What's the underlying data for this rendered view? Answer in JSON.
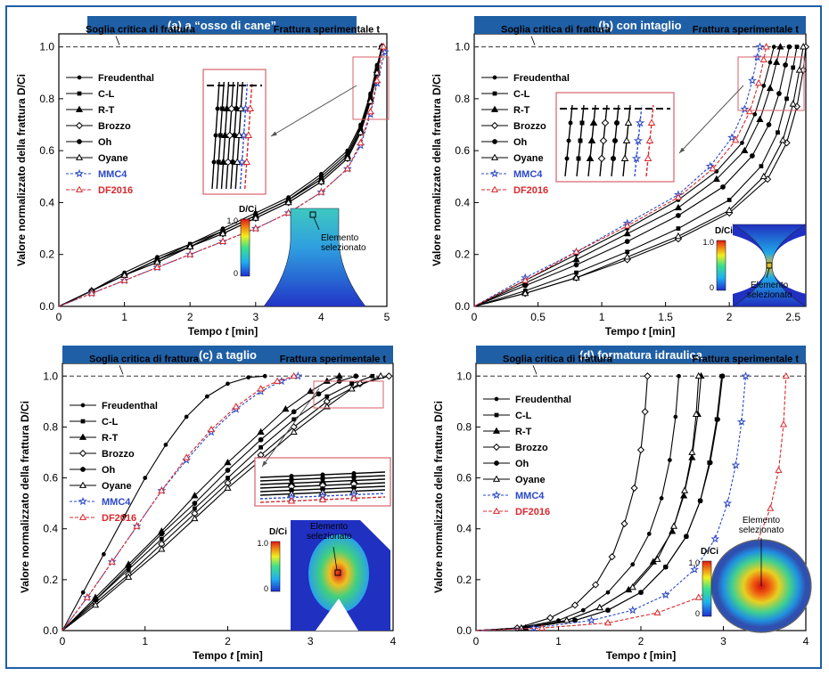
{
  "chart_data": [
    {
      "type": "line",
      "title": "(a) a “osso di cane”",
      "xlabel": "Tempo t [min]",
      "ylabel": "Valore normalizzato della frattura D/Ci",
      "xlim": [
        0,
        5
      ],
      "ylim": [
        0,
        1.05
      ],
      "xticks": [
        "0",
        "1",
        "2",
        "3",
        "4",
        "5"
      ],
      "yticks": [
        "0.0",
        "0.2",
        "0.4",
        "0.6",
        "0.8",
        "1.0"
      ],
      "annotations": [
        "Soglia critica di frattura",
        "Frattura sperimentale t"
      ],
      "contour": {
        "legend_title": "D/Ci",
        "max": "1.0",
        "min": "0",
        "label": "Elemento selezionato"
      },
      "series": [
        {
          "name": "Freudenthal",
          "x": [
            0,
            0.5,
            1,
            1.5,
            2,
            2.5,
            3,
            3.5,
            4,
            4.4,
            4.6,
            4.75,
            4.85,
            4.93
          ],
          "y": [
            0,
            0.06,
            0.13,
            0.19,
            0.24,
            0.3,
            0.36,
            0.42,
            0.51,
            0.6,
            0.7,
            0.82,
            0.93,
            1.0
          ]
        },
        {
          "name": "C-L",
          "x": [
            0,
            0.5,
            1,
            1.5,
            2,
            2.5,
            3,
            3.5,
            4,
            4.4,
            4.6,
            4.75,
            4.85,
            4.92
          ],
          "y": [
            0,
            0.06,
            0.12,
            0.18,
            0.24,
            0.29,
            0.35,
            0.41,
            0.5,
            0.59,
            0.69,
            0.81,
            0.92,
            1.0
          ]
        },
        {
          "name": "R-T",
          "x": [
            0,
            0.5,
            1,
            1.5,
            2,
            2.5,
            3,
            3.5,
            4,
            4.4,
            4.6,
            4.75,
            4.85,
            4.92
          ],
          "y": [
            0,
            0.06,
            0.12,
            0.18,
            0.23,
            0.29,
            0.35,
            0.41,
            0.49,
            0.58,
            0.68,
            0.8,
            0.91,
            1.0
          ]
        },
        {
          "name": "Brozzo",
          "x": [
            0,
            0.5,
            1,
            1.5,
            2,
            2.5,
            3,
            3.5,
            4,
            4.4,
            4.6,
            4.75,
            4.85,
            4.93
          ],
          "y": [
            0,
            0.06,
            0.12,
            0.17,
            0.23,
            0.28,
            0.34,
            0.4,
            0.48,
            0.57,
            0.67,
            0.79,
            0.9,
            1.0
          ]
        },
        {
          "name": "Oh",
          "x": [
            0,
            0.5,
            1,
            1.5,
            2,
            2.5,
            3,
            3.5,
            4,
            4.4,
            4.6,
            4.75,
            4.85,
            4.92
          ],
          "y": [
            0,
            0.06,
            0.12,
            0.18,
            0.23,
            0.29,
            0.35,
            0.41,
            0.49,
            0.58,
            0.68,
            0.8,
            0.91,
            1.0
          ]
        },
        {
          "name": "Oyane",
          "x": [
            0,
            0.5,
            1,
            1.5,
            2,
            2.5,
            3,
            3.5,
            4,
            4.4,
            4.6,
            4.75,
            4.85,
            4.92
          ],
          "y": [
            0,
            0.06,
            0.12,
            0.17,
            0.23,
            0.28,
            0.34,
            0.4,
            0.48,
            0.57,
            0.67,
            0.79,
            0.9,
            1.0
          ]
        },
        {
          "name": "MMC4",
          "x": [
            0,
            0.5,
            1,
            1.5,
            2,
            2.5,
            3,
            3.5,
            4,
            4.4,
            4.6,
            4.75,
            4.85,
            4.97
          ],
          "y": [
            0,
            0.05,
            0.1,
            0.15,
            0.2,
            0.25,
            0.3,
            0.36,
            0.44,
            0.53,
            0.62,
            0.74,
            0.86,
            0.98
          ]
        },
        {
          "name": "DF2016",
          "x": [
            0,
            0.5,
            1,
            1.5,
            2,
            2.5,
            3,
            3.5,
            4,
            4.4,
            4.6,
            4.75,
            4.85,
            4.95
          ],
          "y": [
            0,
            0.05,
            0.1,
            0.15,
            0.2,
            0.25,
            0.3,
            0.36,
            0.44,
            0.53,
            0.63,
            0.75,
            0.87,
            1.0
          ]
        }
      ]
    },
    {
      "type": "line",
      "title": "(b) con intaglio",
      "xlabel": "Tempo t [min]",
      "ylabel": "Valore normalizzato della frattura D/Ci",
      "xlim": [
        0,
        2.6
      ],
      "ylim": [
        0,
        1.05
      ],
      "xticks": [
        "0",
        "0.5",
        "1",
        "1.5",
        "2",
        "2.5"
      ],
      "yticks": [
        "0.0",
        "0.2",
        "0.4",
        "0.6",
        "0.8",
        "1.0"
      ],
      "annotations": [
        "Soglia critica di frattura",
        "Frattura sperimentale t"
      ],
      "contour": {
        "legend_title": "D/Ci",
        "max": "1.0",
        "min": "0",
        "label": "Elemento selezionato"
      },
      "series": [
        {
          "name": "Freudenthal",
          "x": [
            0,
            0.4,
            0.8,
            1.2,
            1.6,
            1.9,
            2.1,
            2.2,
            2.27,
            2.32,
            2.35
          ],
          "y": [
            0,
            0.1,
            0.2,
            0.3,
            0.41,
            0.52,
            0.63,
            0.74,
            0.85,
            0.94,
            1.0
          ]
        },
        {
          "name": "C-L",
          "x": [
            0,
            0.4,
            0.8,
            1.2,
            1.6,
            2.0,
            2.25,
            2.38,
            2.45,
            2.5,
            2.53
          ],
          "y": [
            0,
            0.06,
            0.13,
            0.21,
            0.3,
            0.41,
            0.54,
            0.67,
            0.8,
            0.92,
            1.0
          ]
        },
        {
          "name": "R-T",
          "x": [
            0,
            0.4,
            0.8,
            1.2,
            1.6,
            1.9,
            2.12,
            2.24,
            2.32,
            2.37,
            2.4
          ],
          "y": [
            0,
            0.09,
            0.18,
            0.28,
            0.38,
            0.49,
            0.6,
            0.72,
            0.84,
            0.94,
            1.0
          ]
        },
        {
          "name": "Brozzo",
          "x": [
            0,
            0.4,
            0.8,
            1.2,
            1.6,
            2.0,
            2.3,
            2.45,
            2.53,
            2.58,
            2.6
          ],
          "y": [
            0,
            0.05,
            0.11,
            0.18,
            0.26,
            0.36,
            0.49,
            0.63,
            0.77,
            0.91,
            1.0
          ]
        },
        {
          "name": "Oh",
          "x": [
            0,
            0.4,
            0.8,
            1.2,
            1.6,
            1.95,
            2.18,
            2.31,
            2.39,
            2.44,
            2.47
          ],
          "y": [
            0,
            0.08,
            0.16,
            0.25,
            0.35,
            0.46,
            0.58,
            0.7,
            0.82,
            0.93,
            1.0
          ]
        },
        {
          "name": "Oyane",
          "x": [
            0,
            0.4,
            0.8,
            1.2,
            1.6,
            2.0,
            2.27,
            2.42,
            2.5,
            2.55,
            2.58
          ],
          "y": [
            0,
            0.05,
            0.11,
            0.19,
            0.27,
            0.37,
            0.5,
            0.64,
            0.78,
            0.91,
            1.0
          ]
        },
        {
          "name": "MMC4",
          "x": [
            0,
            0.4,
            0.8,
            1.2,
            1.6,
            1.85,
            2.02,
            2.12,
            2.18,
            2.22,
            2.24
          ],
          "y": [
            0,
            0.11,
            0.21,
            0.32,
            0.43,
            0.54,
            0.65,
            0.76,
            0.87,
            0.96,
            1.0
          ]
        },
        {
          "name": "DF2016",
          "x": [
            0,
            0.4,
            0.8,
            1.2,
            1.6,
            1.87,
            2.05,
            2.16,
            2.23,
            2.27,
            2.29
          ],
          "y": [
            0,
            0.1,
            0.21,
            0.31,
            0.42,
            0.53,
            0.64,
            0.75,
            0.86,
            0.95,
            1.0
          ]
        }
      ]
    },
    {
      "type": "line",
      "title": "(c) a taglio",
      "xlabel": "Tempo t [min]",
      "ylabel": "Valore normalizzato della frattura D/Ci",
      "xlim": [
        0,
        4
      ],
      "ylim": [
        0,
        1.05
      ],
      "xticks": [
        "0",
        "1",
        "2",
        "3",
        "4"
      ],
      "yticks": [
        "0.0",
        "0.2",
        "0.4",
        "0.6",
        "0.8",
        "1.0"
      ],
      "annotations": [
        "Soglia critica di frattura",
        "Frattura sperimentale t"
      ],
      "contour": {
        "legend_title": "D/Ci",
        "max": "1.0",
        "min": "0",
        "label": "Elemento selezionato"
      },
      "series": [
        {
          "name": "Freudenthal",
          "x": [
            0,
            0.25,
            0.5,
            0.75,
            1.0,
            1.25,
            1.5,
            1.75,
            2.0,
            2.25,
            2.45
          ],
          "y": [
            0,
            0.15,
            0.3,
            0.45,
            0.6,
            0.73,
            0.84,
            0.92,
            0.97,
            0.995,
            1.0
          ]
        },
        {
          "name": "C-L",
          "x": [
            0,
            0.4,
            0.8,
            1.2,
            1.6,
            2.0,
            2.4,
            2.8,
            3.2,
            3.5,
            3.75
          ],
          "y": [
            0,
            0.12,
            0.24,
            0.36,
            0.48,
            0.6,
            0.72,
            0.83,
            0.92,
            0.97,
            1.0
          ]
        },
        {
          "name": "R-T",
          "x": [
            0,
            0.4,
            0.8,
            1.2,
            1.6,
            2.0,
            2.4,
            2.7,
            3.0,
            3.2,
            3.35
          ],
          "y": [
            0,
            0.13,
            0.26,
            0.39,
            0.53,
            0.66,
            0.78,
            0.87,
            0.94,
            0.98,
            1.0
          ]
        },
        {
          "name": "Brozzo",
          "x": [
            0,
            0.4,
            0.8,
            1.2,
            1.6,
            2.0,
            2.4,
            2.8,
            3.2,
            3.6,
            3.95
          ],
          "y": [
            0,
            0.11,
            0.22,
            0.34,
            0.46,
            0.58,
            0.69,
            0.8,
            0.9,
            0.97,
            1.0
          ]
        },
        {
          "name": "Oh",
          "x": [
            0,
            0.4,
            0.8,
            1.2,
            1.6,
            2.0,
            2.4,
            2.8,
            3.1,
            3.35,
            3.55
          ],
          "y": [
            0,
            0.12,
            0.25,
            0.38,
            0.5,
            0.63,
            0.75,
            0.86,
            0.93,
            0.98,
            1.0
          ]
        },
        {
          "name": "Oyane",
          "x": [
            0,
            0.4,
            0.8,
            1.2,
            1.6,
            2.0,
            2.4,
            2.8,
            3.2,
            3.5,
            3.85
          ],
          "y": [
            0,
            0.1,
            0.21,
            0.32,
            0.44,
            0.56,
            0.67,
            0.78,
            0.88,
            0.95,
            1.0
          ]
        },
        {
          "name": "MMC4",
          "x": [
            0,
            0.3,
            0.6,
            0.9,
            1.2,
            1.5,
            1.8,
            2.1,
            2.4,
            2.65,
            2.85
          ],
          "y": [
            0,
            0.13,
            0.27,
            0.41,
            0.55,
            0.67,
            0.78,
            0.87,
            0.94,
            0.98,
            1.0
          ]
        },
        {
          "name": "DF2016",
          "x": [
            0,
            0.3,
            0.6,
            0.9,
            1.2,
            1.5,
            1.8,
            2.1,
            2.4,
            2.6,
            2.8
          ],
          "y": [
            0,
            0.13,
            0.27,
            0.41,
            0.55,
            0.68,
            0.79,
            0.88,
            0.95,
            0.98,
            1.0
          ]
        }
      ]
    },
    {
      "type": "line",
      "title": "(d) formatura idraulica",
      "xlabel": "Tempo t [min]",
      "ylabel": "Valore normalizzato della frattura D/Ci",
      "xlim": [
        0,
        4
      ],
      "ylim": [
        0,
        1.05
      ],
      "xticks": [
        "0",
        "1",
        "2",
        "3",
        "4"
      ],
      "yticks": [
        "0.0",
        "0.2",
        "0.4",
        "0.6",
        "0.8",
        "1.0"
      ],
      "annotations": [
        "Soglia critica di frattura",
        "Frattura sperimentale t"
      ],
      "contour": {
        "legend_title": "D/Ci",
        "max": "1.0",
        "min": "0",
        "label": "Elemento selezionato"
      },
      "series": [
        {
          "name": "Freudenthal",
          "x": [
            0,
            0.5,
            1.0,
            1.3,
            1.6,
            1.9,
            2.1,
            2.25,
            2.35,
            2.42,
            2.46
          ],
          "y": [
            0,
            0.01,
            0.04,
            0.08,
            0.15,
            0.26,
            0.38,
            0.52,
            0.67,
            0.84,
            1.0
          ]
        },
        {
          "name": "C-L",
          "x": [
            0,
            0.6,
            1.2,
            1.6,
            2.0,
            2.3,
            2.55,
            2.72,
            2.83,
            2.92,
            2.98
          ],
          "y": [
            0,
            0.01,
            0.04,
            0.08,
            0.15,
            0.25,
            0.37,
            0.51,
            0.66,
            0.83,
            1.0
          ]
        },
        {
          "name": "R-T",
          "x": [
            0,
            0.6,
            1.1,
            1.5,
            1.85,
            2.15,
            2.38,
            2.52,
            2.62,
            2.69,
            2.73
          ],
          "y": [
            0,
            0.01,
            0.04,
            0.09,
            0.16,
            0.27,
            0.39,
            0.53,
            0.68,
            0.85,
            1.0
          ]
        },
        {
          "name": "Brozzo",
          "x": [
            0,
            0.5,
            0.9,
            1.2,
            1.45,
            1.65,
            1.8,
            1.92,
            2.0,
            2.05,
            2.08
          ],
          "y": [
            0,
            0.01,
            0.05,
            0.1,
            0.18,
            0.29,
            0.42,
            0.56,
            0.71,
            0.86,
            1.0
          ]
        },
        {
          "name": "Oh",
          "x": [
            0,
            0.6,
            1.2,
            1.6,
            2.0,
            2.3,
            2.55,
            2.72,
            2.84,
            2.93,
            2.99
          ],
          "y": [
            0,
            0.01,
            0.04,
            0.08,
            0.15,
            0.25,
            0.37,
            0.51,
            0.66,
            0.83,
            1.0
          ]
        },
        {
          "name": "Oyane",
          "x": [
            0,
            0.55,
            1.1,
            1.5,
            1.9,
            2.2,
            2.4,
            2.53,
            2.62,
            2.67,
            2.7
          ],
          "y": [
            0,
            0.01,
            0.04,
            0.09,
            0.17,
            0.28,
            0.41,
            0.55,
            0.7,
            0.85,
            1.0
          ]
        },
        {
          "name": "MMC4",
          "x": [
            0,
            0.7,
            1.4,
            1.9,
            2.3,
            2.65,
            2.9,
            3.05,
            3.15,
            3.22,
            3.27
          ],
          "y": [
            0,
            0.01,
            0.04,
            0.08,
            0.14,
            0.24,
            0.36,
            0.5,
            0.65,
            0.82,
            1.0
          ]
        },
        {
          "name": "DF2016",
          "x": [
            0,
            0.8,
            1.6,
            2.2,
            2.7,
            3.1,
            3.4,
            3.57,
            3.67,
            3.73,
            3.76
          ],
          "y": [
            0,
            0.01,
            0.03,
            0.07,
            0.13,
            0.22,
            0.34,
            0.48,
            0.63,
            0.81,
            1.0
          ]
        }
      ]
    }
  ]
}
